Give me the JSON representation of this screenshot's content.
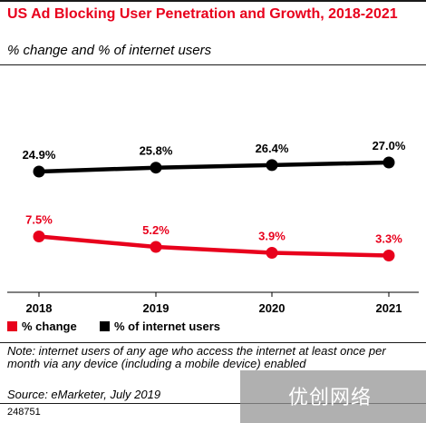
{
  "header": {
    "title": "US Ad Blocking User Penetration and Growth, 2018-2021",
    "subtitle": "% change and % of internet users"
  },
  "chart_data": {
    "type": "line",
    "title": "US Ad Blocking User Penetration and Growth, 2018-2021",
    "subtitle": "% change and % of internet users",
    "categories": [
      "2018",
      "2019",
      "2020",
      "2021"
    ],
    "series": [
      {
        "name": "% of internet users",
        "color": "#000000",
        "values": [
          24.9,
          25.8,
          26.4,
          27.0
        ],
        "labels": [
          "24.9%",
          "25.8%",
          "26.4%",
          "27.0%"
        ]
      },
      {
        "name": "% change",
        "color": "#e8001c",
        "values": [
          7.5,
          5.2,
          3.9,
          3.3
        ],
        "labels": [
          "7.5%",
          "5.2%",
          "3.9%",
          "3.3%"
        ]
      }
    ],
    "legend_position": "bottom-left",
    "grid": false
  },
  "legend": {
    "change_label": "% change",
    "users_label": "% of internet users"
  },
  "footer": {
    "note": "Note: internet users of any age who access the internet at least once per month via any device (including a mobile device) enabled",
    "source": "Source: eMarketer, July 2019",
    "code": "248751",
    "watermark_text": "优创网络"
  }
}
